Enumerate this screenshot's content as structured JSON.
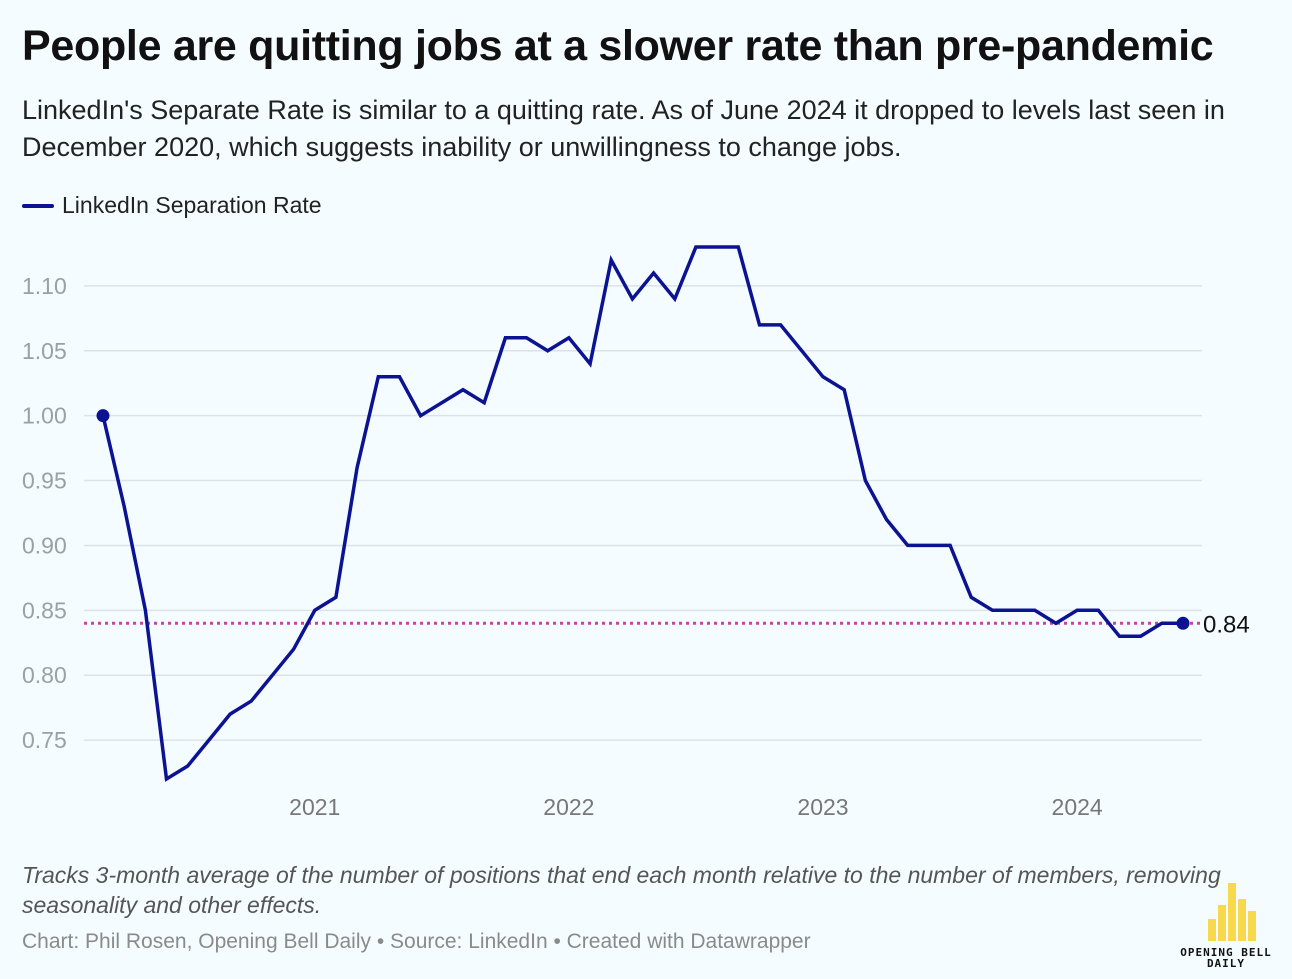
{
  "header": {
    "title": "People are quitting jobs at a slower rate than pre-pandemic",
    "subtitle": "LinkedIn's Separate Rate is similar to a quitting rate. As of June 2024 it dropped to levels last seen in December 2020, which suggests inability or unwillingness to change jobs."
  },
  "footer": {
    "notes": "Tracks 3-month average of the number of positions that end each month relative to the number of members, removing seasonality and other effects.",
    "credit": "Chart: Phil Rosen, Opening Bell Daily • Source: LinkedIn • Created with Datawrapper"
  },
  "logo": {
    "line1": "OPENING BELL",
    "line2": "DAILY",
    "color": "#f7d94c"
  },
  "chart_data": {
    "type": "line",
    "title": "People are quitting jobs at a slower rate than pre-pandemic",
    "xlabel": "",
    "ylabel": "",
    "ylim": [
      0.72,
      1.13
    ],
    "yticks": [
      0.75,
      0.8,
      0.85,
      0.9,
      0.95,
      1.0,
      1.05,
      1.1
    ],
    "ytick_labels": [
      "0.75",
      "0.80",
      "0.85",
      "0.90",
      "0.95",
      "1.00",
      "1.05",
      "1.10"
    ],
    "xticks": [
      "2021",
      "2022",
      "2023",
      "2024"
    ],
    "grid": true,
    "legend": "top-left",
    "series": [
      {
        "name": "LinkedIn Separation Rate",
        "color": "#0c1393",
        "x": [
          "2020-03",
          "2020-04",
          "2020-05",
          "2020-06",
          "2020-07",
          "2020-08",
          "2020-09",
          "2020-10",
          "2020-11",
          "2020-12",
          "2021-01",
          "2021-02",
          "2021-03",
          "2021-04",
          "2021-05",
          "2021-06",
          "2021-07",
          "2021-08",
          "2021-09",
          "2021-10",
          "2021-11",
          "2021-12",
          "2022-01",
          "2022-02",
          "2022-03",
          "2022-04",
          "2022-05",
          "2022-06",
          "2022-07",
          "2022-08",
          "2022-09",
          "2022-10",
          "2022-11",
          "2022-12",
          "2023-01",
          "2023-02",
          "2023-03",
          "2023-04",
          "2023-05",
          "2023-06",
          "2023-07",
          "2023-08",
          "2023-09",
          "2023-10",
          "2023-11",
          "2023-12",
          "2024-01",
          "2024-02",
          "2024-03",
          "2024-04",
          "2024-05",
          "2024-06"
        ],
        "values": [
          1.0,
          0.93,
          0.85,
          0.72,
          0.73,
          0.75,
          0.77,
          0.78,
          0.8,
          0.82,
          0.85,
          0.86,
          0.96,
          1.03,
          1.03,
          1.0,
          1.01,
          1.02,
          1.01,
          1.06,
          1.06,
          1.05,
          1.06,
          1.04,
          1.12,
          1.09,
          1.11,
          1.09,
          1.13,
          1.13,
          1.13,
          1.07,
          1.07,
          1.05,
          1.03,
          1.02,
          0.95,
          0.92,
          0.9,
          0.9,
          0.9,
          0.86,
          0.85,
          0.85,
          0.85,
          0.84,
          0.85,
          0.85,
          0.83,
          0.83,
          0.84,
          0.84
        ]
      }
    ],
    "reference_line": {
      "value": 0.84,
      "label": "0.84",
      "color": "#d040a0",
      "style": "dotted"
    },
    "end_label": "0.84"
  }
}
